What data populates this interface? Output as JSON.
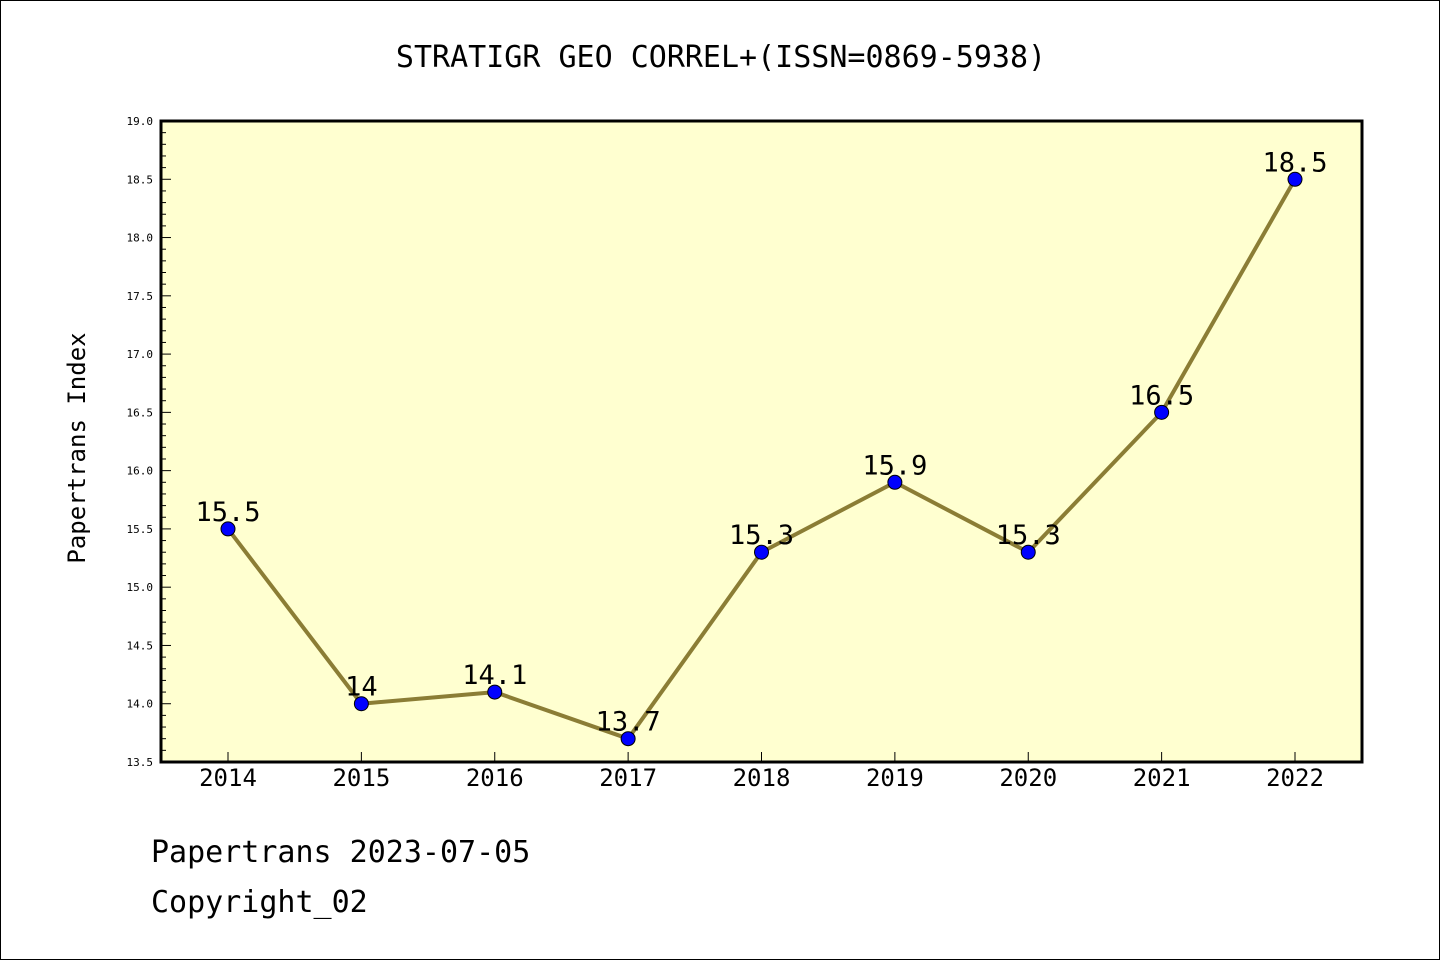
{
  "chart_data": {
    "type": "line",
    "title": "STRATIGR GEO CORREL+(ISSN=0869-5938)",
    "xlabel": "",
    "ylabel": "Papertrans Index",
    "categories": [
      "2014",
      "2015",
      "2016",
      "2017",
      "2018",
      "2019",
      "2020",
      "2021",
      "2022"
    ],
    "series": [
      {
        "values": [
          15.5,
          14,
          14.1,
          13.7,
          15.3,
          15.9,
          15.3,
          16.5,
          18.5
        ],
        "data_labels": [
          "15.5",
          "14",
          "14.1",
          "13.7",
          "15.3",
          "15.9",
          "15.3",
          "16.5",
          "18.5"
        ]
      }
    ],
    "ylim": [
      13.5,
      19.0
    ],
    "yticks": [
      "13.5",
      "14.0",
      "14.5",
      "15.0",
      "15.5",
      "16.0",
      "16.5",
      "17.0",
      "17.5",
      "18.0",
      "18.5",
      "19.0"
    ],
    "grid": false,
    "colors": {
      "plot_background": "#ffffd0",
      "line": "#8b7d35",
      "marker": "#0000ff"
    }
  },
  "footer": {
    "line1": "Papertrans 2023-07-05",
    "line2": "Copyright_02"
  }
}
